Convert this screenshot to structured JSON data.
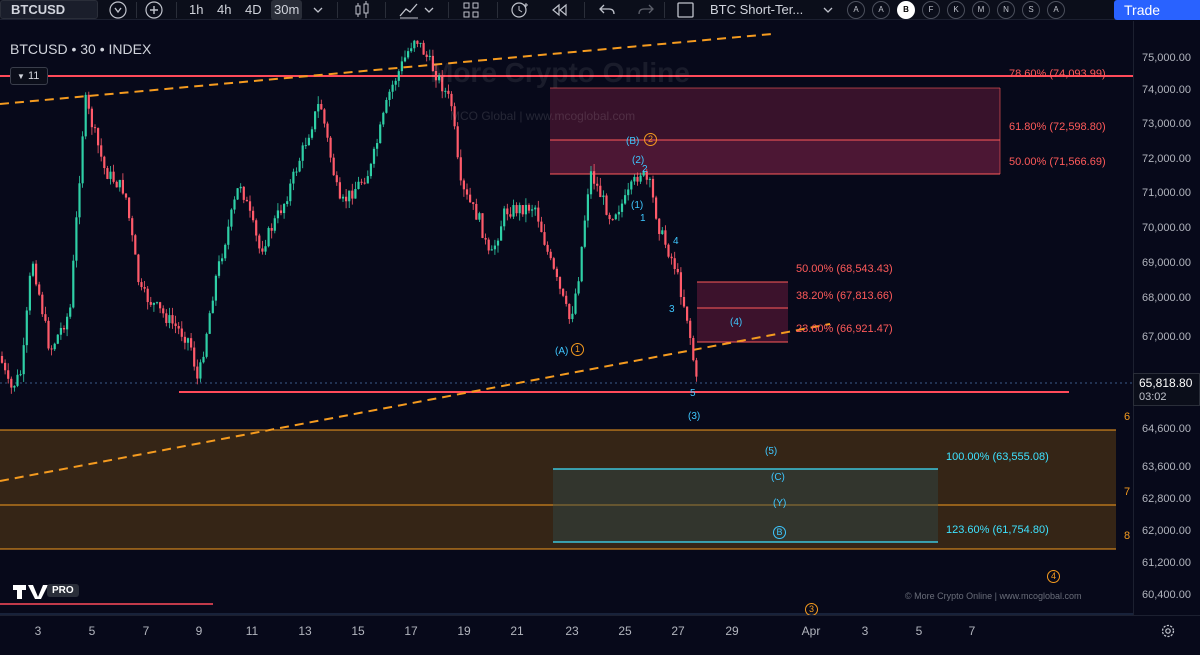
{
  "toolbar": {
    "symbol": "BTCUSD",
    "timeframes": [
      "1h",
      "4h",
      "4D",
      "30m"
    ],
    "active_timeframe": "30m",
    "layout_name": "BTC Short-Ter...",
    "layout_letters": [
      "A",
      "A",
      "B",
      "F",
      "K",
      "M",
      "N",
      "S",
      "A"
    ],
    "selected_layout_letter": "B",
    "trade_label": "Trade"
  },
  "chart": {
    "legend": "BTCUSD • 30 • INDEX",
    "indicator_count": "11",
    "watermark": "More Crypto Online",
    "watermark_sub": "MCO Global   |   www.mcoglobal.com",
    "copyright": "© More Crypto Online   |   www.mcoglobal.com",
    "tv_badge": "PRO",
    "colors": {
      "background": "#07091a",
      "candle_up": "#2fcfa6",
      "candle_down": "#ff5a6a",
      "fib_red": "#ff5a5a",
      "fib_cyan": "#3ee2ff",
      "trend_orange": "#f59b1f",
      "target_box": "#6e4a12"
    },
    "fib_upper": [
      {
        "label": "78.60% (74,093.99)",
        "price": 74093.99
      },
      {
        "label": "61.80% (72,598.80)",
        "price": 72598.8
      },
      {
        "label": "50.00% (71,566.69)",
        "price": 71566.69
      }
    ],
    "fib_mid": [
      {
        "label": "50.00% (68,543.43)",
        "price": 68543.43
      },
      {
        "label": "38.20% (67,813.66)",
        "price": 67813.66
      },
      {
        "label": "23.60% (66,921.47)",
        "price": 66921.47
      }
    ],
    "fib_lower": [
      {
        "label": "100.00% (63,555.08)",
        "price": 63555.08
      },
      {
        "label": "123.60% (61,754.80)",
        "price": 61754.8
      }
    ],
    "wave_labels": {
      "B_paren": "(B)",
      "circ_2": "2",
      "paren_2": "(2)",
      "w2": "2",
      "paren_1": "(1)",
      "w1": "1",
      "w4": "4",
      "w3": "3",
      "paren_4": "(4)",
      "A_paren": "(A)",
      "circ_1": "1",
      "w5": "5",
      "paren_3": "(3)",
      "paren_5": "(5)",
      "C_paren": "(C)",
      "Y_paren": "(Y)",
      "circ_B": "B",
      "circ_4": "4",
      "circ_3": "3"
    },
    "axis_orange_marks": [
      "6",
      "7",
      "8"
    ]
  },
  "price_axis": {
    "ticks": [
      "75,000.00",
      "74,000.00",
      "73,000.00",
      "72,000.00",
      "71,000.00",
      "70,000.00",
      "69,000.00",
      "68,000.00",
      "67,000.00",
      "64,600.00",
      "63,600.00",
      "62,800.00",
      "62,000.00",
      "61,200.00",
      "60,400.00"
    ],
    "current_price": "65,818.80",
    "countdown": "03:02"
  },
  "time_axis": {
    "ticks": [
      "3",
      "5",
      "7",
      "9",
      "11",
      "13",
      "15",
      "17",
      "19",
      "21",
      "23",
      "25",
      "27",
      "29",
      "Apr",
      "3",
      "5",
      "7"
    ]
  }
}
